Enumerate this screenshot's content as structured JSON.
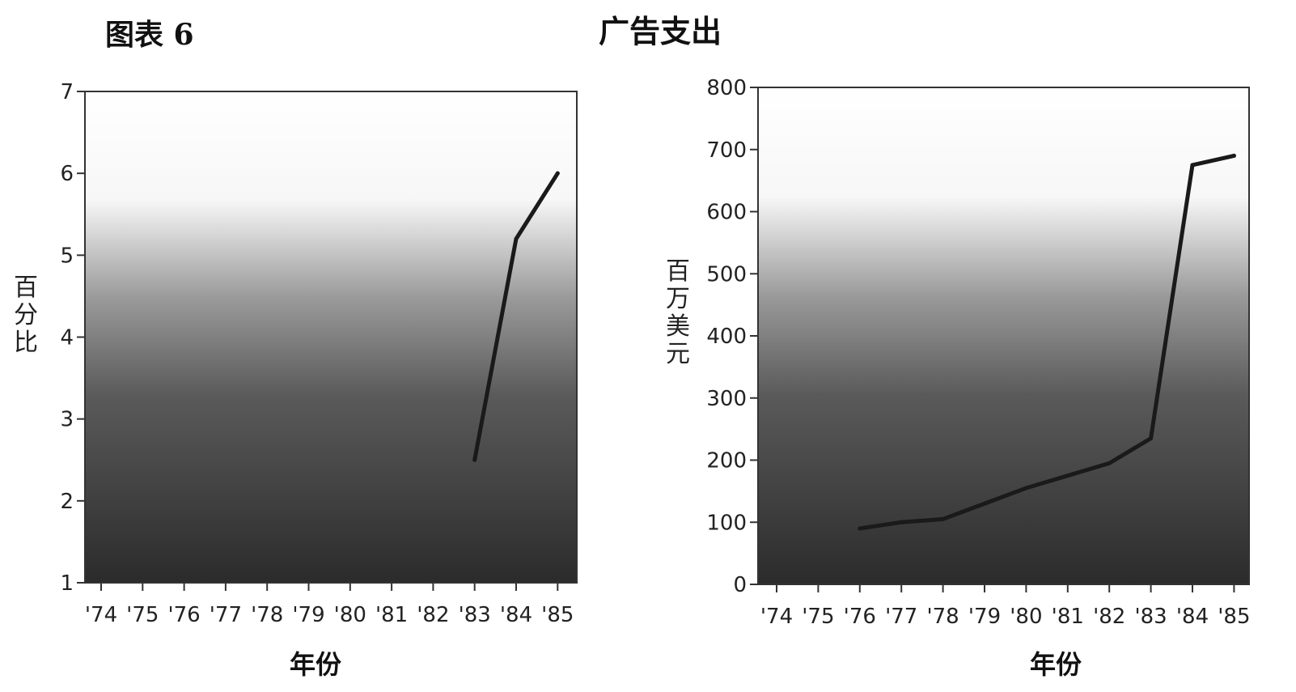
{
  "figure_label": "图表 6",
  "main_title": "广告支出",
  "chart_data": [
    {
      "type": "line",
      "title": "",
      "xlabel": "年份",
      "ylabel": "百分比",
      "categories": [
        "'74",
        "'75",
        "'76",
        "'77",
        "'78",
        "'79",
        "'80",
        "'81",
        "'82",
        "'83",
        "'84",
        "'85"
      ],
      "series": [
        {
          "values": [
            null,
            null,
            null,
            null,
            null,
            null,
            null,
            null,
            null,
            2.5,
            5.2,
            6.0
          ]
        }
      ],
      "ylim": [
        1,
        7
      ],
      "yticks": [
        1,
        2,
        3,
        4,
        5,
        6,
        7
      ],
      "grid": false
    },
    {
      "type": "line",
      "title": "",
      "xlabel": "年份",
      "ylabel": "百万美元",
      "categories": [
        "'74",
        "'75",
        "'76",
        "'77",
        "'78",
        "'79",
        "'80",
        "'81",
        "'82",
        "'83",
        "'84",
        "'85"
      ],
      "series": [
        {
          "values": [
            null,
            null,
            90,
            100,
            105,
            130,
            155,
            175,
            195,
            235,
            675,
            690
          ]
        }
      ],
      "ylim": [
        0,
        800
      ],
      "yticks": [
        0,
        100,
        200,
        300,
        400,
        500,
        600,
        700,
        800
      ],
      "grid": false
    }
  ],
  "colors": {
    "line": "#1a1a1a",
    "fill_dark": "#2b2b2b",
    "fill_light": "#ffffff"
  }
}
